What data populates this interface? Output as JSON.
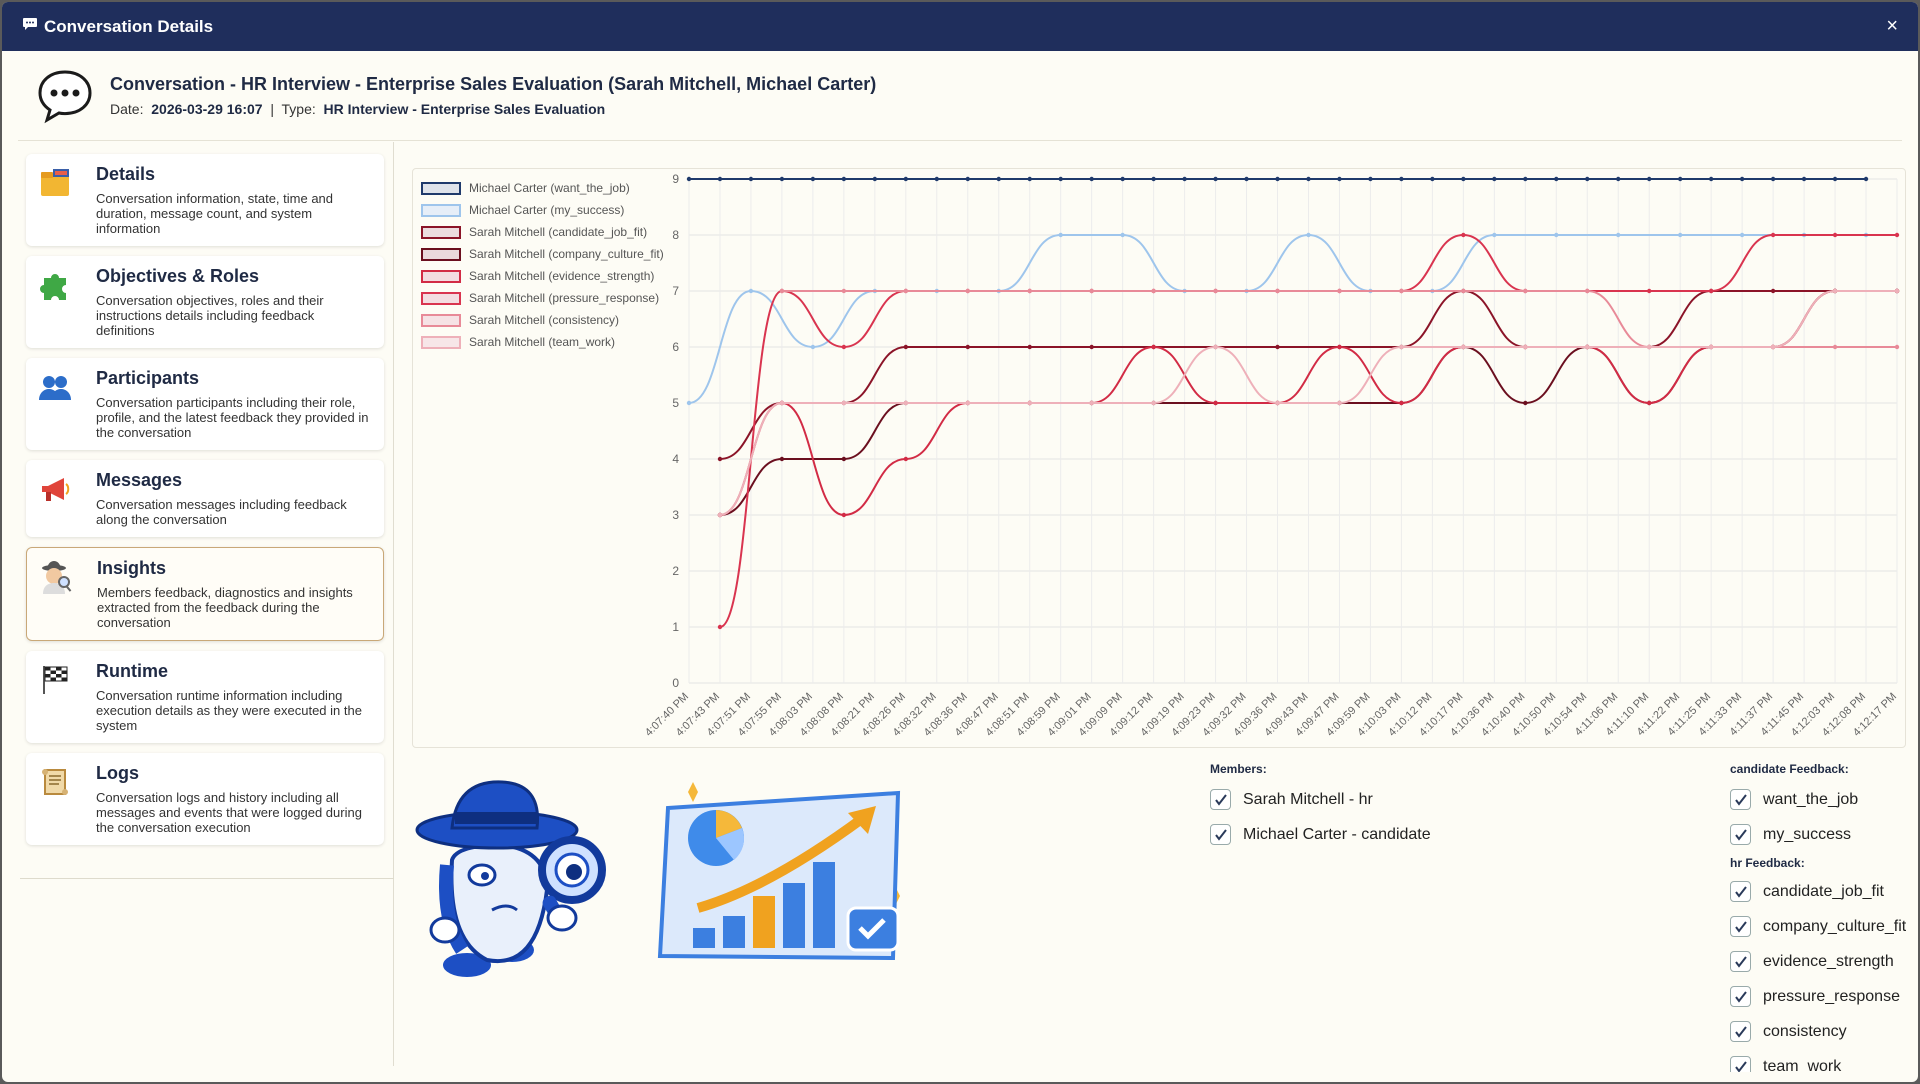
{
  "window": {
    "title": "Conversation Details",
    "close": "×"
  },
  "header": {
    "title": "Conversation - HR Interview - Enterprise Sales Evaluation (Sarah Mitchell, Michael Carter)",
    "date_label": "Date:",
    "date": "2026-03-29 16:07",
    "sep": "|",
    "type_label": "Type:",
    "type": "HR Interview - Enterprise Sales Evaluation"
  },
  "sidebar": {
    "items": [
      {
        "title": "Details",
        "desc": "Conversation information, state, time and duration, message count, and system information",
        "icon": "folder-icon"
      },
      {
        "title": "Objectives & Roles",
        "desc": "Conversation objectives, roles and their instructions details including feedback definitions",
        "icon": "puzzle-icon"
      },
      {
        "title": "Participants",
        "desc": "Conversation participants including their role, profile, and the latest feedback they provided in the conversation",
        "icon": "people-icon"
      },
      {
        "title": "Messages",
        "desc": "Conversation messages including feedback along the conversation",
        "icon": "megaphone-icon"
      },
      {
        "title": "Insights",
        "desc": "Members feedback, diagnostics and insights extracted from the feedback during the conversation",
        "icon": "detective-icon"
      },
      {
        "title": "Runtime",
        "desc": "Conversation runtime information including execution details as they were executed in the system",
        "icon": "flag-icon"
      },
      {
        "title": "Logs",
        "desc": "Conversation logs and history including all messages and events that were logged during the conversation execution",
        "icon": "scroll-icon"
      }
    ]
  },
  "members": {
    "title": "Members:",
    "items": [
      "Sarah Mitchell - hr",
      "Michael Carter - candidate"
    ]
  },
  "feedback": {
    "candidate_title": "candidate Feedback:",
    "candidate_items": [
      "want_the_job",
      "my_success"
    ],
    "hr_title": "hr Feedback:",
    "hr_items": [
      "candidate_job_fit",
      "company_culture_fit",
      "evidence_strength",
      "pressure_response",
      "consistency",
      "team_work"
    ]
  },
  "chart_data": {
    "type": "line",
    "ylim": [
      0,
      9
    ],
    "yticks": [
      0,
      1,
      2,
      3,
      4,
      5,
      6,
      7,
      8,
      9
    ],
    "grid": true,
    "legend": "top-left",
    "x": [
      "4:07:40 PM",
      "4:07:43 PM",
      "4:07:51 PM",
      "4:07:55 PM",
      "4:08:03 PM",
      "4:08:08 PM",
      "4:08:21 PM",
      "4:08:26 PM",
      "4:08:32 PM",
      "4:08:36 PM",
      "4:08:47 PM",
      "4:08:51 PM",
      "4:08:59 PM",
      "4:09:01 PM",
      "4:09:09 PM",
      "4:09:12 PM",
      "4:09:19 PM",
      "4:09:23 PM",
      "4:09:32 PM",
      "4:09:36 PM",
      "4:09:43 PM",
      "4:09:47 PM",
      "4:09:59 PM",
      "4:10:03 PM",
      "4:10:12 PM",
      "4:10:17 PM",
      "4:10:36 PM",
      "4:10:40 PM",
      "4:10:50 PM",
      "4:10:54 PM",
      "4:11:06 PM",
      "4:11:10 PM",
      "4:11:22 PM",
      "4:11:25 PM",
      "4:11:33 PM",
      "4:11:37 PM",
      "4:11:45 PM",
      "4:12:03 PM",
      "4:12:08 PM",
      "4:12:17 PM"
    ],
    "series": [
      {
        "name": "Michael Carter (want_the_job)",
        "color": "#1f3a6b",
        "fill": "#dfe3ea",
        "values": [
          9,
          9,
          9,
          9,
          9,
          9,
          9,
          9,
          9,
          9,
          9,
          9,
          9,
          9,
          9,
          9,
          9,
          9,
          9,
          9,
          9,
          9,
          9,
          9,
          9,
          9,
          9,
          9,
          9,
          9,
          9,
          9,
          9,
          9,
          9,
          9,
          9,
          9,
          9,
          null
        ]
      },
      {
        "name": "Michael Carter (my_success)",
        "color": "#9ec5ec",
        "fill": "#e6eef8",
        "values": [
          5,
          null,
          7,
          null,
          6,
          null,
          7,
          null,
          7,
          null,
          7,
          null,
          8,
          null,
          8,
          null,
          7,
          null,
          7,
          null,
          8,
          null,
          7,
          null,
          7,
          null,
          8,
          null,
          8,
          null,
          8,
          null,
          8,
          null,
          8,
          null,
          8,
          null,
          8,
          null
        ]
      },
      {
        "name": "Sarah Mitchell (candidate_job_fit)",
        "color": "#8b1428",
        "fill": "#ecdcdf",
        "values": [
          null,
          4,
          null,
          5,
          null,
          5,
          null,
          6,
          null,
          6,
          null,
          6,
          null,
          6,
          null,
          6,
          null,
          6,
          null,
          6,
          null,
          6,
          null,
          6,
          null,
          7,
          null,
          6,
          null,
          6,
          null,
          6,
          null,
          7,
          null,
          7,
          null,
          7,
          null,
          7
        ]
      },
      {
        "name": "Sarah Mitchell (company_culture_fit)",
        "color": "#6b0f1f",
        "fill": "#ead9dc",
        "values": [
          null,
          3,
          null,
          4,
          null,
          4,
          null,
          5,
          null,
          5,
          null,
          5,
          null,
          5,
          null,
          5,
          null,
          5,
          null,
          5,
          null,
          5,
          null,
          5,
          null,
          6,
          null,
          5,
          null,
          6,
          null,
          5,
          null,
          6,
          null,
          6,
          null,
          7,
          null,
          7
        ]
      },
      {
        "name": "Sarah Mitchell (evidence_strength)",
        "color": "#d22b45",
        "fill": "#f3dbe0",
        "values": [
          null,
          3,
          null,
          5,
          null,
          3,
          null,
          4,
          null,
          5,
          null,
          5,
          null,
          5,
          null,
          6,
          null,
          5,
          null,
          5,
          null,
          6,
          null,
          5,
          null,
          6,
          null,
          6,
          null,
          6,
          null,
          5,
          null,
          6,
          null,
          6,
          null,
          7,
          null,
          7
        ]
      },
      {
        "name": "Sarah Mitchell (pressure_response)",
        "color": "#d9344f",
        "fill": "#f3dde1",
        "values": [
          null,
          1,
          null,
          7,
          null,
          6,
          null,
          7,
          null,
          7,
          null,
          7,
          null,
          7,
          null,
          7,
          null,
          7,
          null,
          7,
          null,
          7,
          null,
          7,
          null,
          8,
          null,
          7,
          null,
          7,
          null,
          7,
          null,
          7,
          null,
          8,
          null,
          8,
          null,
          8
        ]
      },
      {
        "name": "Sarah Mitchell (consistency)",
        "color": "#e88a98",
        "fill": "#f6e2e5",
        "values": [
          null,
          null,
          null,
          7,
          null,
          7,
          null,
          7,
          null,
          7,
          null,
          7,
          null,
          7,
          null,
          7,
          null,
          7,
          null,
          7,
          null,
          7,
          null,
          7,
          null,
          7,
          null,
          7,
          null,
          7,
          null,
          6,
          null,
          6,
          null,
          6,
          null,
          6,
          null,
          6
        ]
      },
      {
        "name": "Sarah Mitchell (team_work)",
        "color": "#eeb0b9",
        "fill": "#f7e6e8",
        "values": [
          null,
          3,
          null,
          5,
          null,
          5,
          null,
          5,
          null,
          5,
          null,
          5,
          null,
          5,
          null,
          5,
          null,
          6,
          null,
          5,
          null,
          5,
          null,
          6,
          null,
          6,
          null,
          6,
          null,
          6,
          null,
          6,
          null,
          6,
          null,
          6,
          null,
          7,
          null,
          7
        ]
      }
    ]
  }
}
